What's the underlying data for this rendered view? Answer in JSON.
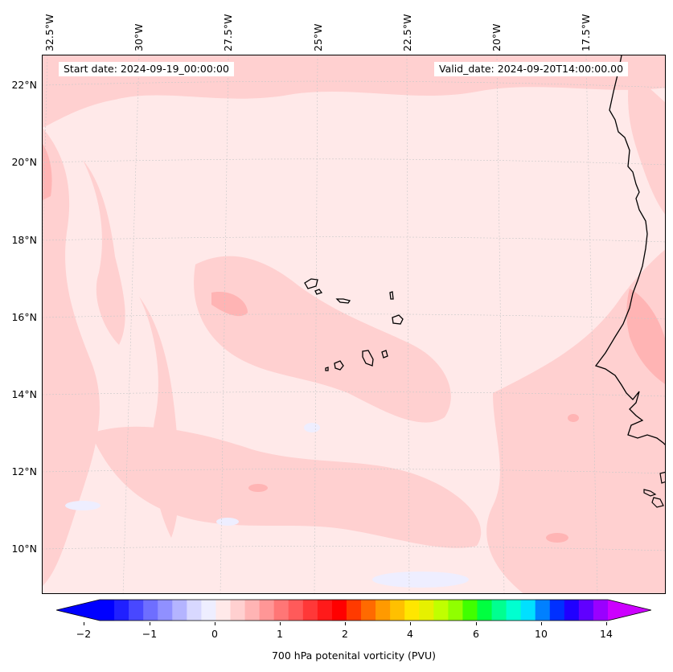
{
  "header": {
    "start_date": "Start date: 2024-09-19_00:00:00",
    "valid_date": "Valid_date: 2024-09-20T14:00:00.00"
  },
  "lon_labels": [
    "32.5°W",
    "30°W",
    "27.5°W",
    "25°W",
    "22.5°W",
    "20°W",
    "17.5°W"
  ],
  "lat_labels": [
    "22°N",
    "20°N",
    "18°N",
    "16°N",
    "14°N",
    "12°N",
    "10°N"
  ],
  "colorbar": {
    "title": "700 hPa potenital vorticity (PVU)",
    "tick_labels": [
      "−2",
      "−1",
      "0",
      "1",
      "2",
      "4",
      "6",
      "10",
      "14"
    ],
    "colors": [
      "#0000ff",
      "#2020ff",
      "#4848ff",
      "#6e6eff",
      "#9090ff",
      "#b4b4ff",
      "#d8d8ff",
      "#eeeeff",
      "#ffe9e9",
      "#ffd0d0",
      "#ffb4b4",
      "#ff9696",
      "#ff7676",
      "#ff5a5a",
      "#ff3838",
      "#ff1a1a",
      "#ff0000",
      "#ff3a00",
      "#ff6a00",
      "#ff9a00",
      "#ffc000",
      "#ffe600",
      "#e6f000",
      "#c0ff00",
      "#90ff00",
      "#40ff00",
      "#00ff40",
      "#00ff90",
      "#00ffd0",
      "#00e0ff",
      "#0080ff",
      "#0030ff",
      "#2000ff",
      "#6000ff",
      "#9a00ff"
    ],
    "under_color": "#0000ff",
    "over_color": "#cc00ff"
  },
  "field_colors": {
    "background": "#ffe9e9",
    "light": "#ffd0d0",
    "medium": "#ffb4b4",
    "strong": "#ffa0a0",
    "negative": "#eeeeff"
  }
}
